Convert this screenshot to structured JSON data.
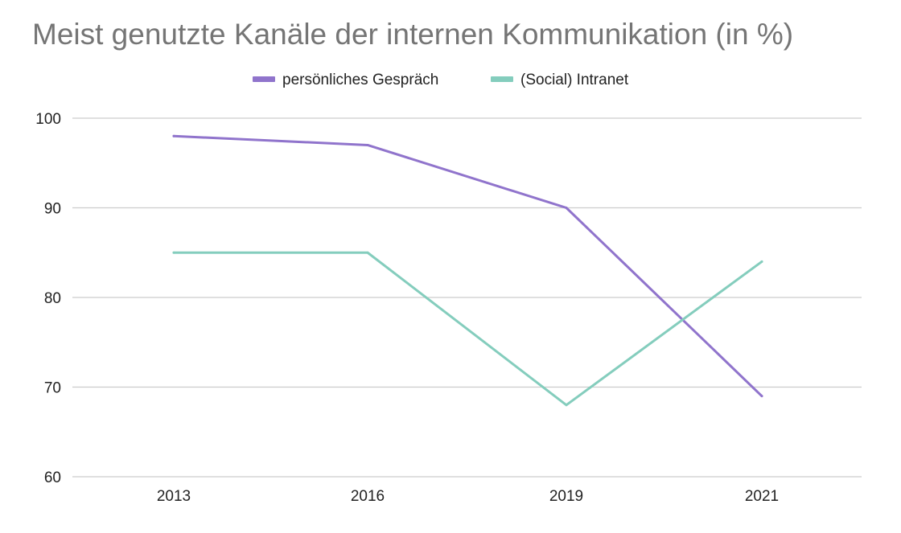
{
  "chart_data": {
    "type": "line",
    "title": "Meist genutzte Kanäle der internen Kommunikation (in %)",
    "xlabel": "",
    "ylabel": "",
    "categories": [
      "2013",
      "2016",
      "2019",
      "2021"
    ],
    "ylim": [
      60,
      100
    ],
    "yticks": [
      100,
      90,
      80,
      70,
      60
    ],
    "grid": true,
    "legend_position": "top-center",
    "series": [
      {
        "name": "persönliches Gespräch",
        "color": "#9074cc",
        "values": [
          98,
          97,
          90,
          69
        ]
      },
      {
        "name": "(Social) Intranet",
        "color": "#84cdbd",
        "values": [
          85,
          85,
          68,
          84
        ]
      }
    ]
  }
}
